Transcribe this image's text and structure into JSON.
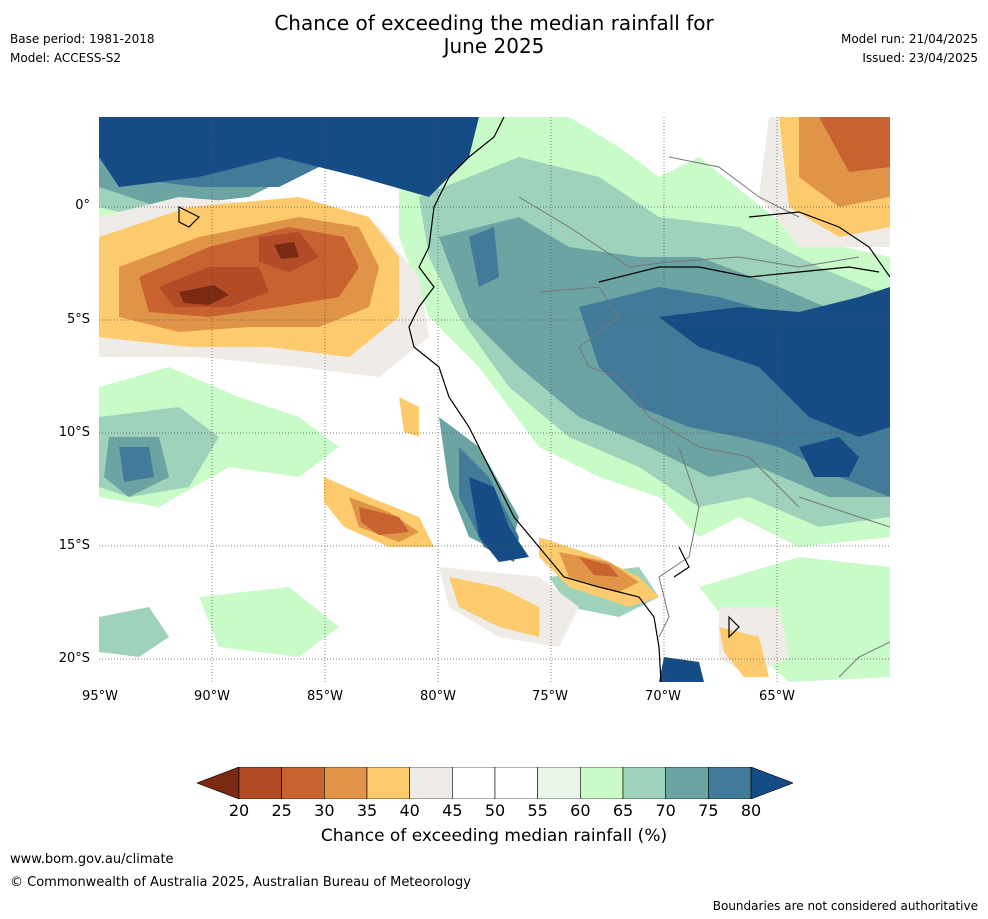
{
  "header": {
    "title_line1": "Chance of exceeding the median rainfall for",
    "title_line2": "June 2025",
    "base_period": "Base period: 1981-2018",
    "model": "Model: ACCESS-S2",
    "model_run": "Model run: 21/04/2025",
    "issued": "Issued: 23/04/2025"
  },
  "map": {
    "lat_labels": [
      "0°",
      "5°S",
      "10°S",
      "15°S",
      "20°S"
    ],
    "lon_labels": [
      "95°W",
      "90°W",
      "85°W",
      "80°W",
      "75°W",
      "70°W",
      "65°W"
    ],
    "lat_range": [
      -21,
      4
    ],
    "lon_range": [
      -95,
      -60
    ],
    "grid": true
  },
  "legend": {
    "ticks": [
      "20",
      "25",
      "30",
      "35",
      "40",
      "45",
      "50",
      "55",
      "60",
      "65",
      "70",
      "75",
      "80"
    ],
    "colors": [
      "#7a2a12",
      "#b24b26",
      "#c86231",
      "#e09448",
      "#fdcb6e",
      "#efebe6",
      "#ffffff",
      "#ffffff",
      "#eaf5ea",
      "#c8fbc8",
      "#9ed2bb",
      "#6ca3a3",
      "#417b99",
      "#164c86"
    ],
    "label": "Chance of exceeding median rainfall (%)"
  },
  "footer": {
    "url": "www.bom.gov.au/climate",
    "copyright": "© Commonwealth of Australia 2025, Australian Bureau of Meteorology",
    "disclaimer": "Boundaries are not considered authoritative"
  }
}
